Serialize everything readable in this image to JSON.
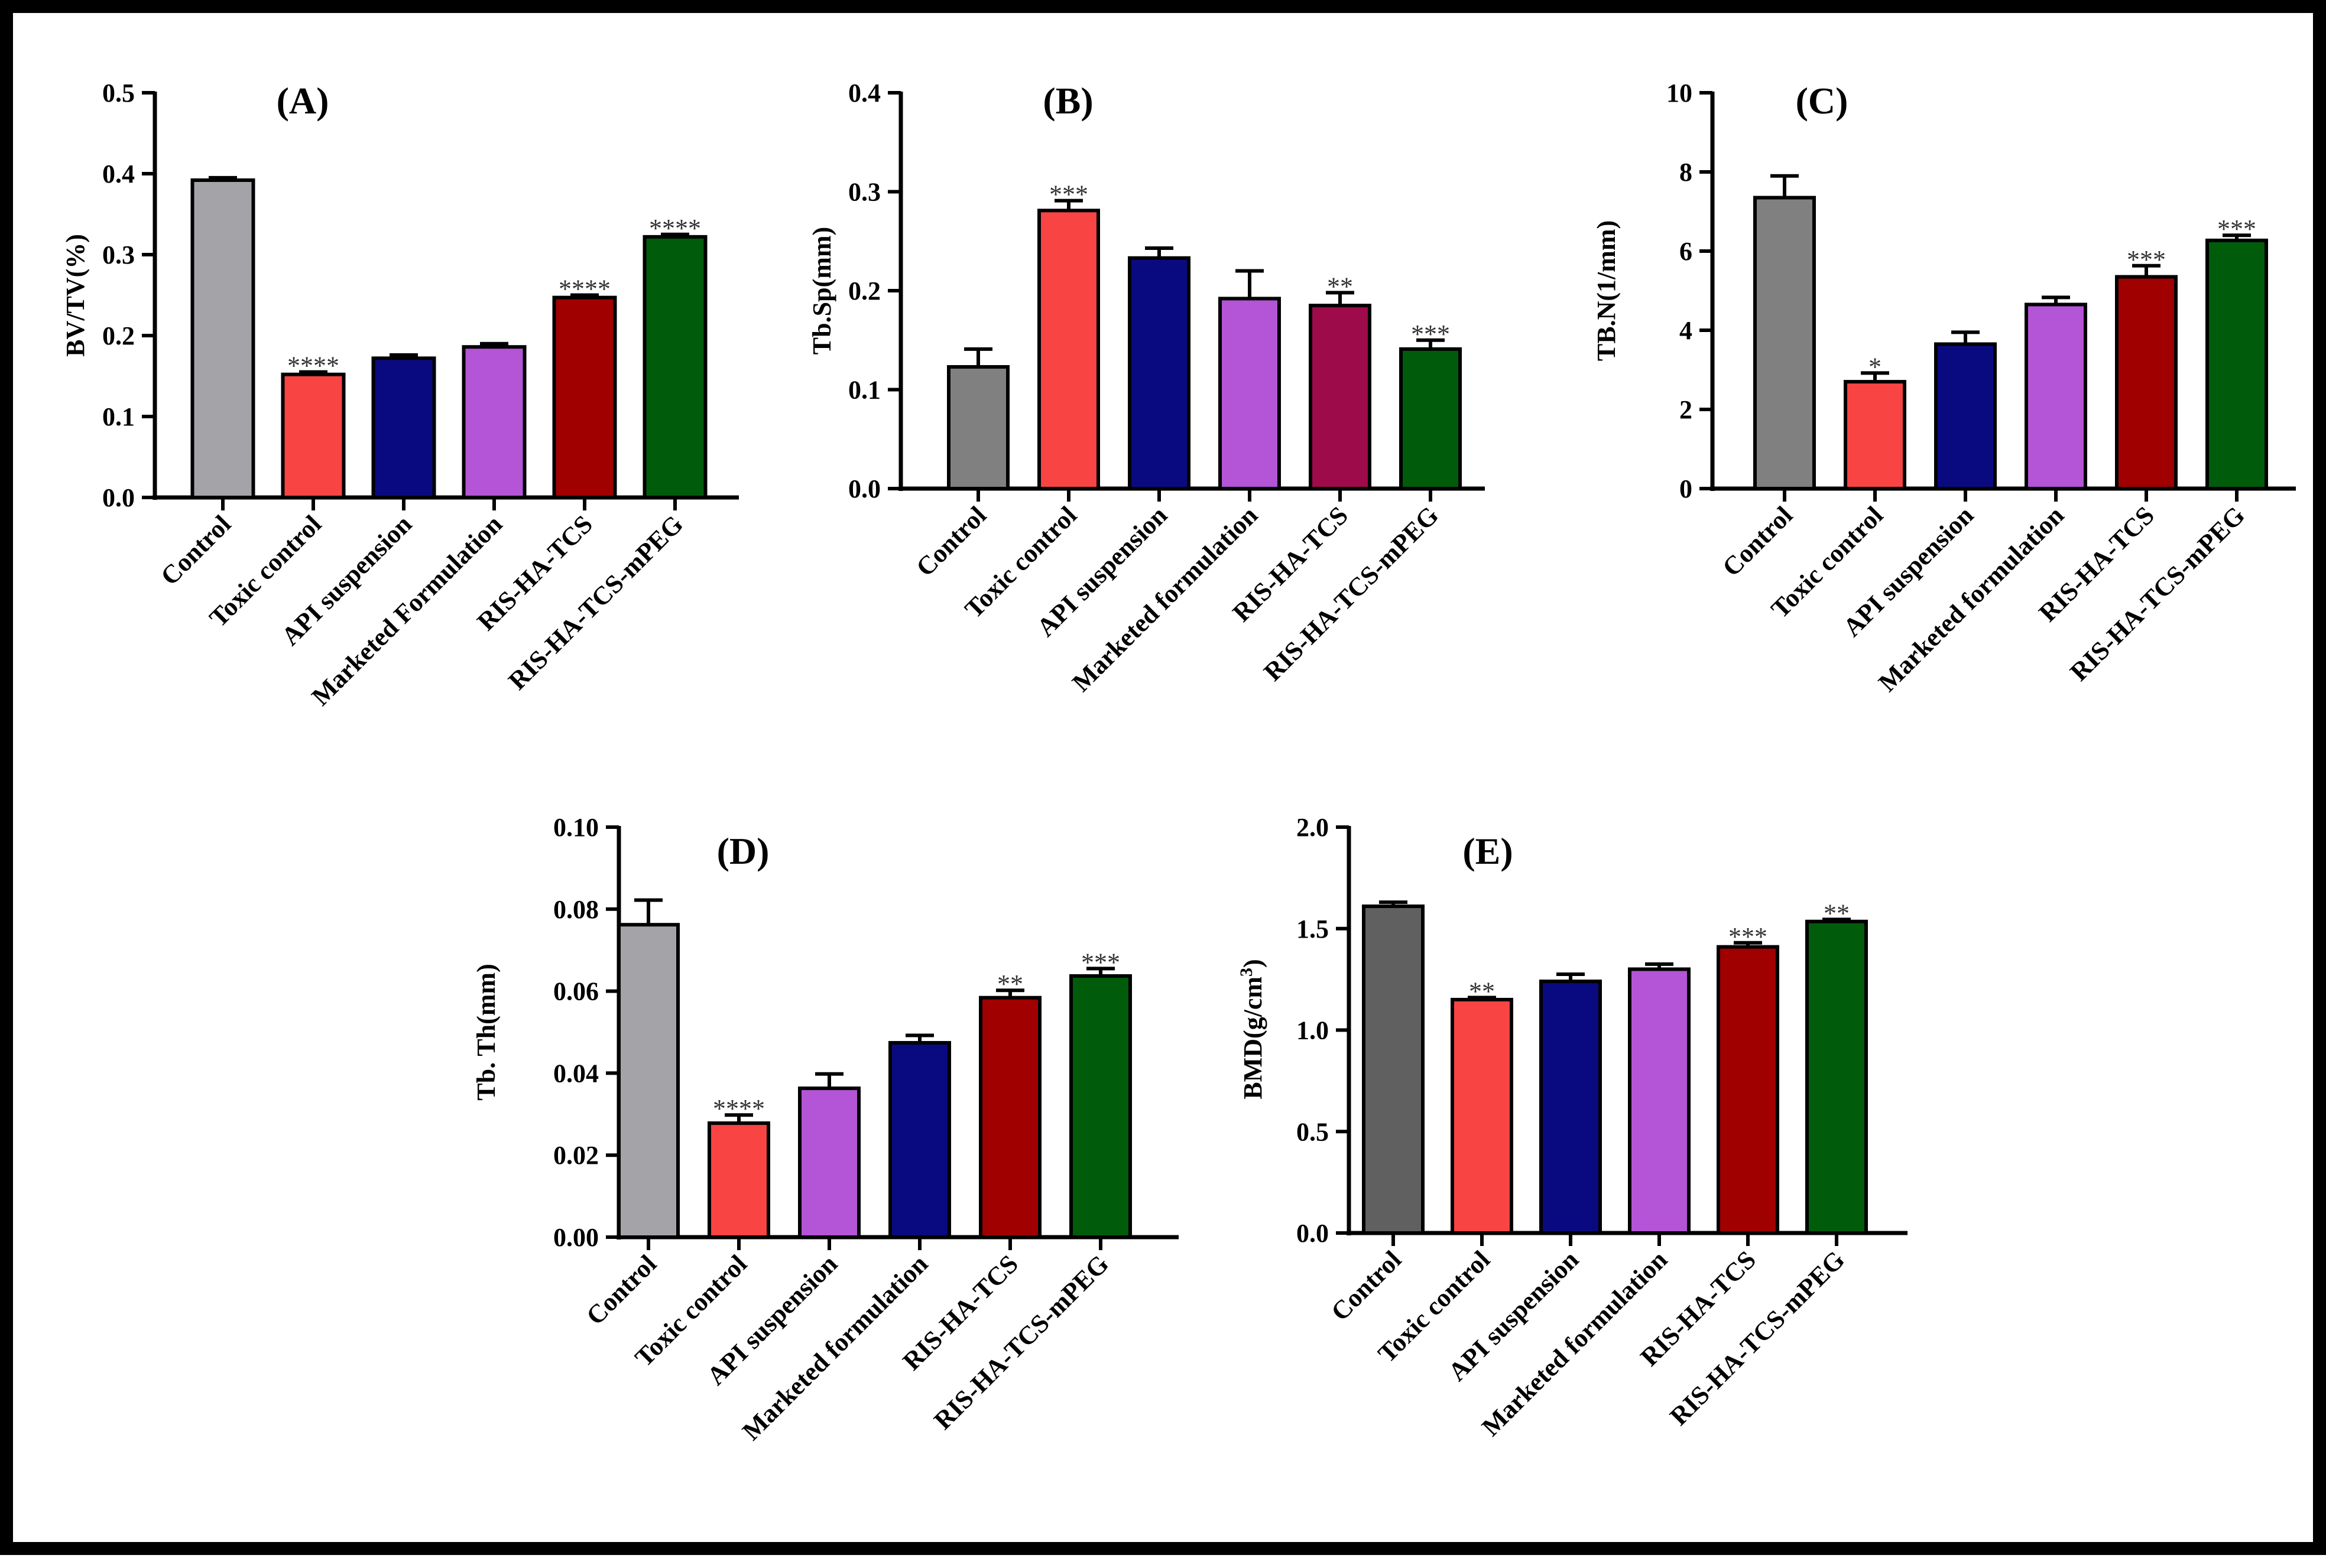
{
  "chart_data": [
    {
      "type": "bar",
      "title": "(A)",
      "ylabel": "BV/TV(%)",
      "ylim": [
        0,
        0.5
      ],
      "yticks": [
        0,
        0.1,
        0.2,
        0.3,
        0.4,
        0.5
      ],
      "ytick_labels": [
        "0.0",
        "0.1",
        "0.2",
        "0.3",
        "0.4",
        "0.5"
      ],
      "categories": [
        "Control",
        "Toxic control",
        "API suspension",
        "Marketed Formulation",
        "RIS-HA-TCS",
        "RIS-HA-TCS-mPEG"
      ],
      "values": [
        0.392,
        0.152,
        0.172,
        0.186,
        0.247,
        0.322
      ],
      "errors": [
        0.003,
        0.003,
        0.004,
        0.004,
        0.003,
        0.003
      ],
      "significance": [
        "",
        "****",
        "",
        "",
        "****",
        "****"
      ],
      "colors": [
        "#a3a3a8",
        "#f94444",
        "#0a0a80",
        "#b454d6",
        "#a00000",
        "#005c0a"
      ]
    },
    {
      "type": "bar",
      "title": "(B)",
      "ylabel": "Tb.Sp(mm)",
      "ylim": [
        0,
        0.4
      ],
      "yticks": [
        0,
        0.1,
        0.2,
        0.3,
        0.4
      ],
      "ytick_labels": [
        "0.0",
        "0.1",
        "0.2",
        "0.3",
        "0.4"
      ],
      "categories": [
        "Control",
        "Toxic control",
        "API suspension",
        "Marketed formulation",
        "RIS-HA-TCS",
        "RIS-HA-TCS-mPEG"
      ],
      "values": [
        0.123,
        0.281,
        0.233,
        0.192,
        0.185,
        0.141
      ],
      "errors": [
        0.018,
        0.01,
        0.01,
        0.028,
        0.013,
        0.009
      ],
      "significance": [
        "",
        "***",
        "",
        "",
        "**",
        "***"
      ],
      "colors": [
        "#808080",
        "#f94444",
        "#0a0a80",
        "#b454d6",
        "#9e0b4a",
        "#005c0a"
      ]
    },
    {
      "type": "bar",
      "title": "(C)",
      "ylabel": "TB.N(1/mm)",
      "ylim": [
        0,
        10
      ],
      "yticks": [
        0,
        2,
        4,
        6,
        8,
        10
      ],
      "ytick_labels": [
        "0",
        "2",
        "4",
        "6",
        "8",
        "10"
      ],
      "categories": [
        "Control",
        "Toxic control",
        "API suspension",
        "Marketed formulation",
        "RIS-HA-TCS",
        "RIS-HA-TCS-mPEG"
      ],
      "values": [
        7.35,
        2.7,
        3.65,
        4.65,
        5.35,
        6.27
      ],
      "errors": [
        0.55,
        0.22,
        0.3,
        0.18,
        0.28,
        0.13
      ],
      "significance": [
        "",
        "*",
        "",
        "",
        "***",
        "***"
      ],
      "colors": [
        "#808080",
        "#f94444",
        "#0a0a80",
        "#b454d6",
        "#a00000",
        "#005c0a"
      ]
    },
    {
      "type": "bar",
      "title": "(D)",
      "ylabel": "Tb. Th(mm)",
      "ylim": [
        0,
        0.1
      ],
      "yticks": [
        0,
        0.02,
        0.04,
        0.06,
        0.08,
        0.1
      ],
      "ytick_labels": [
        "0.00",
        "0.02",
        "0.04",
        "0.06",
        "0.08",
        "0.10"
      ],
      "categories": [
        "Control",
        "Toxic control",
        "API suspension",
        "Marketed formulation",
        "RIS-HA-TCS",
        "RIS-HA-TCS-mPEG"
      ],
      "values": [
        0.0762,
        0.0278,
        0.0363,
        0.0474,
        0.0584,
        0.0637
      ],
      "errors": [
        0.006,
        0.002,
        0.0035,
        0.0018,
        0.0018,
        0.0018
      ],
      "significance": [
        "",
        "****",
        "",
        "",
        "**",
        "***"
      ],
      "colors": [
        "#a3a3a8",
        "#f94444",
        "#b454d6",
        "#0a0a80",
        "#a00000",
        "#005c0a"
      ]
    },
    {
      "type": "bar",
      "title": "(E)",
      "ylabel": "BMD(g/cm",
      "ylabel_superscript": "3",
      "ylabel_suffix": ")",
      "ylim": [
        0,
        2.0
      ],
      "yticks": [
        0,
        0.5,
        1.0,
        1.5,
        2.0
      ],
      "ytick_labels": [
        "0.0",
        "0.5",
        "1.0",
        "1.5",
        "2.0"
      ],
      "categories": [
        "Control",
        "Toxic control",
        "API suspension",
        "Marketed formulation",
        "RIS-HA-TCS",
        "RIS-HA-TCS-mPEG"
      ],
      "values": [
        1.61,
        1.15,
        1.24,
        1.3,
        1.41,
        1.535
      ],
      "errors": [
        0.02,
        0.01,
        0.035,
        0.025,
        0.02,
        0.01
      ],
      "significance": [
        "",
        "**",
        "",
        "",
        "***",
        "**"
      ],
      "colors": [
        "#606060",
        "#f94444",
        "#0a0a80",
        "#b454d6",
        "#a00000",
        "#005c0a"
      ]
    }
  ]
}
